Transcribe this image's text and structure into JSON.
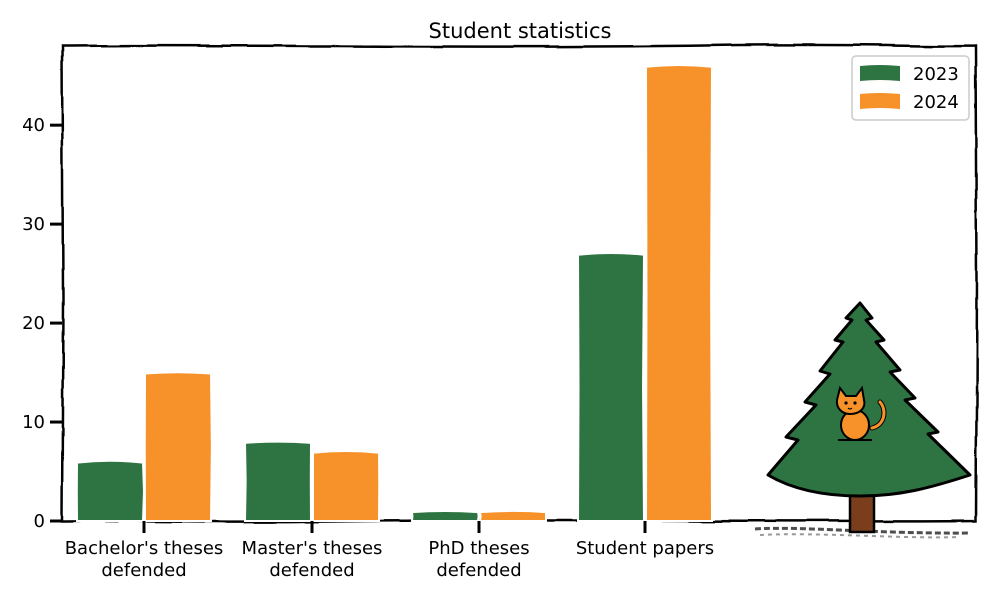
{
  "chart_data": {
    "type": "bar",
    "title": "Student statistics",
    "categories": [
      [
        "Bachelor's theses",
        "defended"
      ],
      [
        "Master's theses",
        "defended"
      ],
      [
        "PhD theses",
        "defended"
      ],
      [
        "Student papers"
      ]
    ],
    "series": [
      {
        "name": "2023",
        "color": "#2e7442",
        "values": [
          6,
          8,
          1,
          27
        ]
      },
      {
        "name": "2024",
        "color": "#f7922b",
        "values": [
          15,
          7,
          1,
          46
        ]
      }
    ],
    "yticks": [
      0,
      10,
      20,
      30,
      40
    ],
    "ylim": [
      0,
      48
    ],
    "legend_position": "top-right",
    "grid": false,
    "decoration": "xkcd-style sketch with a fir tree and an orange cat"
  }
}
